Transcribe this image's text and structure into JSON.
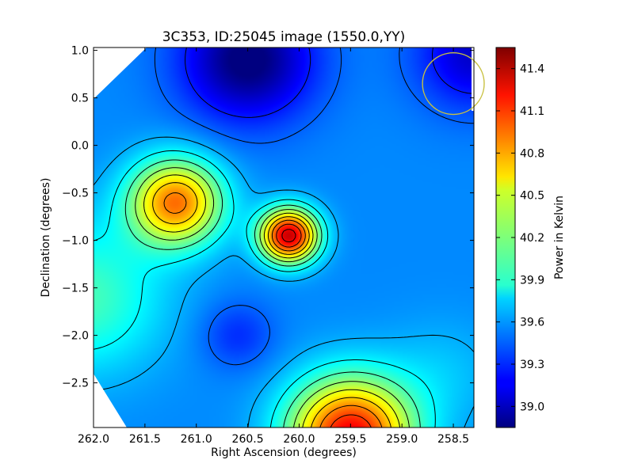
{
  "chart_data": {
    "type": "heatmap",
    "title": "3C353, ID:25045 image (1550.0,YY)",
    "xlabel": "Right Ascension (degrees)",
    "ylabel": "Declination (degrees)",
    "xlim": [
      262.0,
      258.3
    ],
    "ylim": [
      -2.97,
      1.03
    ],
    "x_ticks": [
      262.0,
      261.5,
      261.0,
      260.5,
      260.0,
      259.5,
      259.0,
      258.5
    ],
    "x_tick_labels": [
      "262.0",
      "261.5",
      "261.0",
      "260.5",
      "260.0",
      "259.5",
      "259.0",
      "258.5"
    ],
    "y_ticks": [
      1.0,
      0.5,
      0.0,
      -0.5,
      -1.0,
      -1.5,
      -2.0,
      -2.5
    ],
    "y_tick_labels": [
      "1.0",
      "0.5",
      "0.0",
      "−0.5",
      "−1.0",
      "−1.5",
      "−2.0",
      "−2.5"
    ],
    "colorbar": {
      "label": "Power in Kelvin",
      "range": [
        38.85,
        41.55
      ],
      "ticks": [
        39.0,
        39.3,
        39.6,
        39.9,
        40.2,
        40.5,
        40.8,
        41.1,
        41.4
      ],
      "tick_labels": [
        "39.0",
        "39.3",
        "39.6",
        "39.9",
        "40.2",
        "40.5",
        "40.8",
        "41.1",
        "41.4"
      ],
      "colormap": "jet"
    },
    "field": {
      "background": 39.55,
      "components": [
        {
          "ra": 261.2,
          "dec": -0.6,
          "sigma": 0.32,
          "amp": 1.35
        },
        {
          "ra": 260.1,
          "dec": -0.95,
          "sigma": 0.2,
          "amp": 1.8
        },
        {
          "ra": 259.5,
          "dec": -3.05,
          "sigma": 0.42,
          "amp": 1.7
        },
        {
          "ra": 260.5,
          "dec": 0.9,
          "sigma": 0.45,
          "amp": -0.75
        },
        {
          "ra": 258.3,
          "dec": 0.95,
          "sigma": 0.4,
          "amp": -0.5
        },
        {
          "ra": 260.6,
          "dec": -2.0,
          "sigma": 0.25,
          "amp": -0.25
        },
        {
          "ra": 262.1,
          "dec": -1.6,
          "sigma": 0.55,
          "amp": 0.5
        },
        {
          "ra": 258.6,
          "dec": -2.4,
          "sigma": 0.4,
          "amp": 0.15
        }
      ],
      "contour_levels": [
        39.25,
        39.45,
        39.65,
        39.85,
        40.05,
        40.25,
        40.45,
        40.65,
        40.85,
        41.05,
        41.25,
        41.45
      ]
    },
    "beam": {
      "ra": 258.5,
      "dec": 0.65,
      "radius": 0.3,
      "color": "#c8c040"
    },
    "grid": false,
    "legend": "none"
  }
}
